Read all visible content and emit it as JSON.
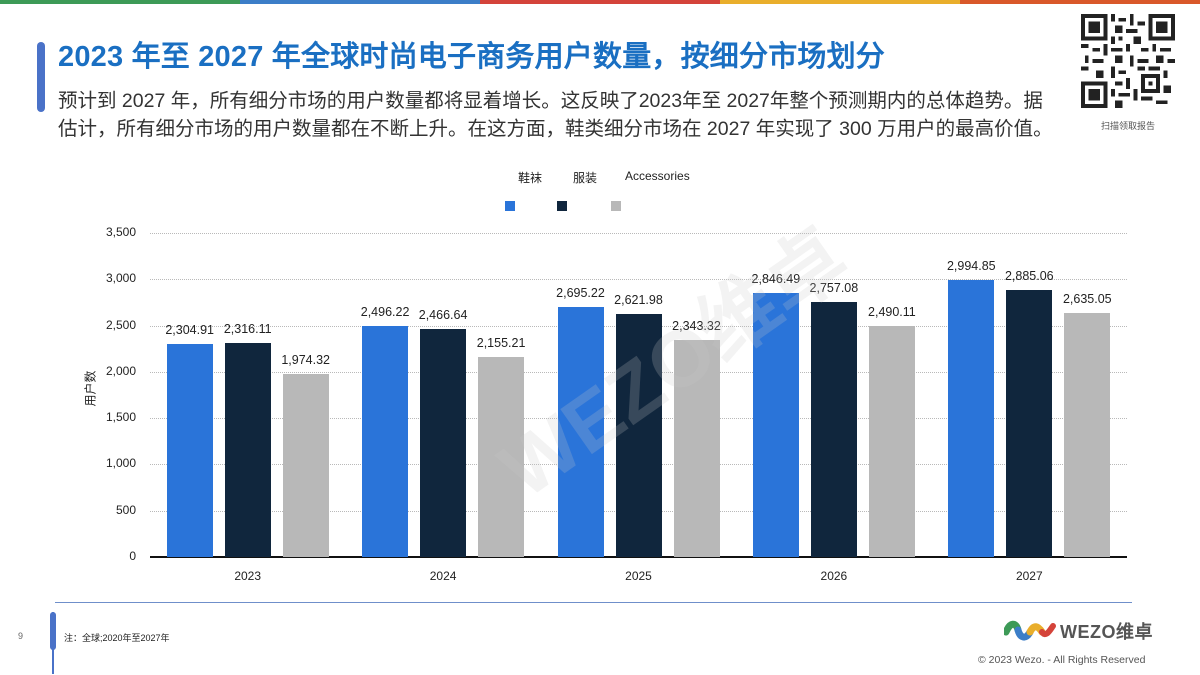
{
  "header": {
    "title": "2023 年至 2027 年全球时尚电子商务用户数量，按细分市场划分",
    "description": "预计到 2027 年，所有细分市场的用户数量都将显着增长。这反映了2023年至 2027年整个预测期内的总体趋势。据估计，所有细分市场的用户数量都在不断上升。在这方面，鞋类细分市场在 2027 年实现了 300 万用户的最高价值。",
    "qr_caption": "扫描领取报告",
    "stripe_colors": [
      "#3d9a57",
      "#3c7ec8",
      "#d4433a",
      "#e9ae2b",
      "#d9582a"
    ]
  },
  "colors": {
    "title": "#1a6fc2",
    "accent": "#4a72c8",
    "series_footwear": "#2a74d9",
    "series_apparel": "#10263d",
    "series_accessories": "#b8b8b8"
  },
  "chart_data": {
    "type": "bar",
    "title": "2023 年至 2027 年全球时尚电子商务用户数量，按细分市场划分",
    "xlabel": "",
    "ylabel": "用户数",
    "ylim": [
      0,
      3500
    ],
    "yticks": [
      "0",
      "500",
      "1,000",
      "1,500",
      "2,000",
      "2,500",
      "3,000",
      "3,500"
    ],
    "grid": true,
    "legend_position": "top",
    "categories": [
      "2023",
      "2024",
      "2025",
      "2026",
      "2027"
    ],
    "series": [
      {
        "name": "鞋袜",
        "color": "#2a74d9",
        "values": [
          2304.91,
          2496.22,
          2695.22,
          2846.49,
          2994.85
        ],
        "labels": [
          "2,304.91",
          "2,496.22",
          "2,695.22",
          "2,846.49",
          "2,994.85"
        ]
      },
      {
        "name": "服装",
        "color": "#10263d",
        "values": [
          2316.11,
          2466.64,
          2621.98,
          2757.08,
          2885.06
        ],
        "labels": [
          "2,316.11",
          "2,466.64",
          "2,621.98",
          "2,757.08",
          "2,885.06"
        ]
      },
      {
        "name": "Accessories",
        "color": "#b8b8b8",
        "values": [
          1974.32,
          2155.21,
          2343.32,
          2490.11,
          2635.05
        ],
        "labels": [
          "1,974.32",
          "2,155.21",
          "2,343.32",
          "2,490.11",
          "2,635.05"
        ]
      }
    ]
  },
  "watermark": "WEZO维卓",
  "footer": {
    "page_number": "9",
    "source_note": "注：全球;2020年至2027年",
    "brand_name": "WEZO维卓",
    "copyright": "© 2023 Wezo. - All Rights Reserved"
  }
}
